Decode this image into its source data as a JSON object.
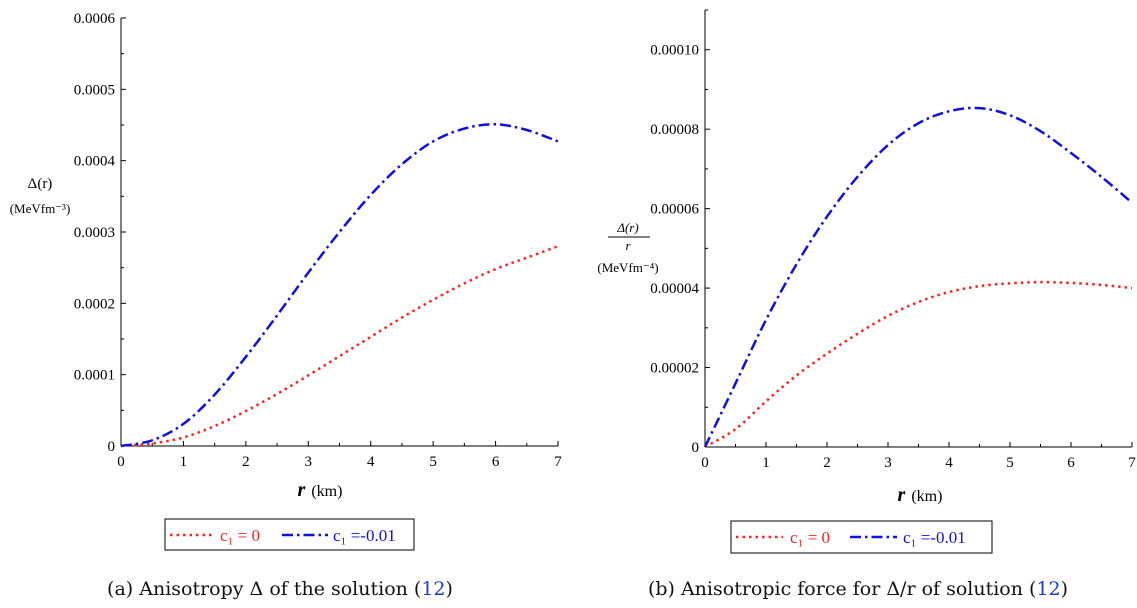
{
  "chart_data": [
    {
      "id": "a",
      "type": "line",
      "caption": "(a) Anisotropy Δ of the solution (12)",
      "caption_parts": [
        "(a) Anisotropy Δ of the solution (",
        "12",
        ")"
      ],
      "xlabel_var": "r",
      "xlabel_unit": "(km)",
      "ylabel_lines": [
        "Δ(r)",
        "(MeVfm⁻³)"
      ],
      "xlim": [
        0,
        7
      ],
      "ylim": [
        0,
        0.0006
      ],
      "xticks": [
        "0",
        "1",
        "2",
        "3",
        "4",
        "5",
        "6",
        "7"
      ],
      "yticks": [
        "0",
        "0.0001",
        "0.0002",
        "0.0003",
        "0.0004",
        "0.0005",
        "0.0006"
      ],
      "grid": false,
      "legend_position": "bottom",
      "series": [
        {
          "name": "c₁ = 0",
          "color": "#ff2020",
          "style": "dotted",
          "x": [
            0,
            0.5,
            1,
            1.5,
            2,
            2.5,
            3,
            3.5,
            4,
            4.5,
            5,
            5.5,
            6,
            6.5,
            7
          ],
          "y": [
            0,
            3.5e-06,
            1.2e-05,
            2.8e-05,
            4.9e-05,
            7.3e-05,
            9.9e-05,
            0.000126,
            0.000153,
            0.00018,
            0.000205,
            0.000228,
            0.000248,
            0.000264,
            0.00028
          ]
        },
        {
          "name": "c₁ =-0.01",
          "color": "#1010e0",
          "style": "dashdot",
          "x": [
            0,
            0.5,
            1,
            1.5,
            2,
            2.5,
            3,
            3.5,
            4,
            4.5,
            5,
            5.5,
            6,
            6.5,
            7
          ],
          "y": [
            0,
            8e-06,
            3.1e-05,
            7.2e-05,
            0.000125,
            0.000183,
            0.000243,
            0.0003,
            0.000352,
            0.000395,
            0.000427,
            0.000445,
            0.000451,
            0.000443,
            0.000427
          ]
        }
      ]
    },
    {
      "id": "b",
      "type": "line",
      "caption": "(b) Anisotropic force for Δ/r of solution (12)",
      "caption_parts": [
        "(b) Anisotropic force for Δ/r of solution (",
        "12",
        ")"
      ],
      "xlabel_var": "r",
      "xlabel_unit": "(km)",
      "ylabel_lines": [
        "Δ(r)",
        "r",
        "(MeVfm⁻⁴)"
      ],
      "xlim": [
        0,
        7
      ],
      "ylim": [
        0,
        0.00011
      ],
      "xticks": [
        "0",
        "1",
        "2",
        "3",
        "4",
        "5",
        "6",
        "7"
      ],
      "yticks": [
        "0",
        "0.00002",
        "0.00004",
        "0.00006",
        "0.00008",
        "0.00010"
      ],
      "grid": false,
      "legend_position": "bottom",
      "series": [
        {
          "name": "c₁ = 0",
          "color": "#ff2020",
          "style": "dotted",
          "x": [
            0,
            0.5,
            1,
            1.5,
            2,
            2.5,
            3,
            3.5,
            4,
            4.5,
            5,
            5.5,
            6,
            6.5,
            7
          ],
          "y": [
            0,
            4.5e-06,
            1.15e-05,
            1.8e-05,
            2.35e-05,
            2.85e-05,
            3.3e-05,
            3.65e-05,
            3.9e-05,
            4.05e-05,
            4.12e-05,
            4.15e-05,
            4.13e-05,
            4.08e-05,
            4e-05
          ]
        },
        {
          "name": "c₁ =-0.01",
          "color": "#1010e0",
          "style": "dashdot",
          "x": [
            0,
            0.5,
            1,
            1.5,
            2,
            2.5,
            3,
            3.5,
            4,
            4.5,
            5,
            5.5,
            6,
            6.5,
            7
          ],
          "y": [
            0,
            1.6e-05,
            3.2e-05,
            4.6e-05,
            5.8e-05,
            6.8e-05,
            7.6e-05,
            8.15e-05,
            8.45e-05,
            8.53e-05,
            8.35e-05,
            7.95e-05,
            7.4e-05,
            6.8e-05,
            6.15e-05
          ]
        }
      ]
    }
  ]
}
